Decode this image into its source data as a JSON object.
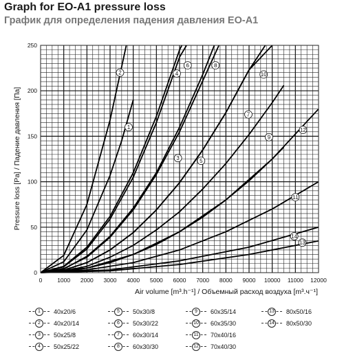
{
  "chart_data": {
    "type": "line",
    "title": "Graph for EO-A1 pressure loss",
    "subtitle": "График для определения падения давления EO-A1",
    "xlabel": "Air volume [m³.h⁻¹] / Объемный расход воздуха [m³.ч⁻¹]",
    "ylabel": "Pressure loss [Pa] / Падение давления [Па]",
    "xlim": [
      0,
      12000
    ],
    "ylim": [
      0,
      250
    ],
    "x_ticks": [
      "0",
      "1000",
      "2000",
      "3000",
      "4000",
      "5000",
      "6000",
      "7000",
      "8000",
      "9000",
      "10000",
      "11000",
      "12000"
    ],
    "y_ticks": [
      "0",
      "50",
      "100",
      "150",
      "200",
      "250"
    ],
    "grid": true,
    "series": [
      {
        "name": "40x20/6",
        "label": "1",
        "points": [
          [
            0,
            0
          ],
          [
            1000,
            12
          ],
          [
            2000,
            47
          ],
          [
            3000,
            107
          ],
          [
            3500,
            145
          ],
          [
            4000,
            190
          ]
        ]
      },
      {
        "name": "40x20/14",
        "label": "2",
        "points": [
          [
            0,
            0
          ],
          [
            1000,
            19
          ],
          [
            2000,
            75
          ],
          [
            3000,
            168
          ],
          [
            3700,
            250
          ]
        ]
      },
      {
        "name": "50x25/8",
        "label": "3",
        "points": [
          [
            0,
            0
          ],
          [
            1000,
            4
          ],
          [
            2000,
            18
          ],
          [
            3000,
            40
          ],
          [
            4000,
            71
          ],
          [
            5000,
            110
          ],
          [
            6000,
            160
          ],
          [
            7000,
            218
          ],
          [
            7500,
            250
          ]
        ]
      },
      {
        "name": "50x25/22",
        "label": "4",
        "points": [
          [
            0,
            0
          ],
          [
            1000,
            7
          ],
          [
            2000,
            28
          ],
          [
            3000,
            62
          ],
          [
            4000,
            110
          ],
          [
            5000,
            172
          ],
          [
            6000,
            245
          ],
          [
            6100,
            250
          ]
        ]
      },
      {
        "name": "50x30/8",
        "label": "5",
        "points": [
          [
            0,
            0
          ],
          [
            1000,
            2.5
          ],
          [
            2000,
            11
          ],
          [
            3000,
            25
          ],
          [
            4000,
            44
          ],
          [
            5000,
            69
          ],
          [
            6000,
            99
          ],
          [
            7000,
            135
          ],
          [
            8000,
            176
          ],
          [
            9000,
            223
          ],
          [
            9700,
            250
          ]
        ]
      },
      {
        "name": "50x30/22",
        "label": "6",
        "points": [
          [
            0,
            0
          ],
          [
            1000,
            6.5
          ],
          [
            2000,
            26
          ],
          [
            3000,
            59
          ],
          [
            4000,
            105
          ],
          [
            5000,
            165
          ],
          [
            6000,
            237
          ],
          [
            6300,
            250
          ]
        ]
      },
      {
        "name": "60x30/14",
        "label": "7",
        "points": [
          [
            0,
            0
          ],
          [
            1000,
            2
          ],
          [
            2000,
            7
          ],
          [
            3000,
            17
          ],
          [
            4000,
            30
          ],
          [
            5000,
            47
          ],
          [
            6000,
            67
          ],
          [
            7000,
            92
          ],
          [
            8000,
            120
          ],
          [
            9000,
            152
          ],
          [
            10000,
            187
          ],
          [
            10500,
            206
          ]
        ]
      },
      {
        "name": "60x30/30",
        "label": "8",
        "points": [
          [
            0,
            0
          ],
          [
            1000,
            4.5
          ],
          [
            2000,
            17
          ],
          [
            3000,
            39
          ],
          [
            4000,
            69
          ],
          [
            5000,
            108
          ],
          [
            6000,
            155
          ],
          [
            7000,
            211
          ],
          [
            7700,
            250
          ]
        ]
      },
      {
        "name": "60x35/14",
        "label": "9",
        "points": [
          [
            0,
            0
          ],
          [
            1000,
            1.2
          ],
          [
            2000,
            5
          ],
          [
            3000,
            11
          ],
          [
            4000,
            20
          ],
          [
            5000,
            31
          ],
          [
            6000,
            45
          ],
          [
            7000,
            61
          ],
          [
            8000,
            80
          ],
          [
            9000,
            101
          ],
          [
            10000,
            125
          ],
          [
            10500,
            138
          ]
        ]
      },
      {
        "name": "60x35/30",
        "label": "10",
        "points": [
          [
            0,
            0
          ],
          [
            1000,
            2.8
          ],
          [
            2000,
            11
          ],
          [
            3000,
            25
          ],
          [
            4000,
            44
          ],
          [
            5000,
            69
          ],
          [
            6000,
            99
          ],
          [
            7000,
            135
          ],
          [
            8000,
            176
          ],
          [
            9000,
            223
          ],
          [
            10000,
            250
          ]
        ]
      },
      {
        "name": "70x40/16",
        "label": "11",
        "points": [
          [
            0,
            0
          ],
          [
            2000,
            3
          ],
          [
            4000,
            11
          ],
          [
            6000,
            25
          ],
          [
            8000,
            45
          ],
          [
            10000,
            70
          ],
          [
            12000,
            100
          ]
        ]
      },
      {
        "name": "70x40/30",
        "label": "12",
        "points": [
          [
            0,
            0
          ],
          [
            2000,
            5
          ],
          [
            4000,
            20
          ],
          [
            6000,
            45
          ],
          [
            8000,
            80
          ],
          [
            10000,
            125
          ],
          [
            12000,
            180
          ]
        ]
      },
      {
        "name": "80x50/16",
        "label": "13",
        "points": [
          [
            0,
            0
          ],
          [
            3000,
            2
          ],
          [
            6000,
            9
          ],
          [
            9000,
            20
          ],
          [
            12000,
            35
          ]
        ]
      },
      {
        "name": "80x50/30",
        "label": "14",
        "points": [
          [
            0,
            0
          ],
          [
            3000,
            3
          ],
          [
            6000,
            13
          ],
          [
            9000,
            28
          ],
          [
            12000,
            50
          ]
        ]
      }
    ],
    "label_positions": [
      {
        "label": "1",
        "x": 3800,
        "y": 160
      },
      {
        "label": "2",
        "x": 3430,
        "y": 220
      },
      {
        "label": "3",
        "x": 5930,
        "y": 126
      },
      {
        "label": "4",
        "x": 5880,
        "y": 219
      },
      {
        "label": "5",
        "x": 6930,
        "y": 123
      },
      {
        "label": "6",
        "x": 6350,
        "y": 228
      },
      {
        "label": "7",
        "x": 8970,
        "y": 174
      },
      {
        "label": "8",
        "x": 7550,
        "y": 228
      },
      {
        "label": "9",
        "x": 9860,
        "y": 149
      },
      {
        "label": "10",
        "x": 9630,
        "y": 218
      },
      {
        "label": "11",
        "x": 11000,
        "y": 83
      },
      {
        "label": "12",
        "x": 11330,
        "y": 157
      },
      {
        "label": "13",
        "x": 11300,
        "y": 33
      },
      {
        "label": "14",
        "x": 10950,
        "y": 40
      }
    ]
  },
  "legend_columns": [
    [
      {
        "label": "1",
        "text": "40x20/6"
      },
      {
        "label": "2",
        "text": "40x20/14"
      },
      {
        "label": "3",
        "text": "50x25/8"
      },
      {
        "label": "4",
        "text": "50x25/22"
      }
    ],
    [
      {
        "label": "5",
        "text": "50x30/8"
      },
      {
        "label": "6",
        "text": "50x30/22"
      },
      {
        "label": "7",
        "text": "60x30/14"
      },
      {
        "label": "8",
        "text": "60x30/30"
      }
    ],
    [
      {
        "label": "9",
        "text": "60x35/14"
      },
      {
        "label": "10",
        "text": "60x35/30"
      },
      {
        "label": "11",
        "text": "70x40/16"
      },
      {
        "label": "12",
        "text": "70x40/30"
      }
    ],
    [
      {
        "label": "13",
        "text": "80x50/16"
      },
      {
        "label": "14",
        "text": "80x50/30"
      }
    ]
  ]
}
